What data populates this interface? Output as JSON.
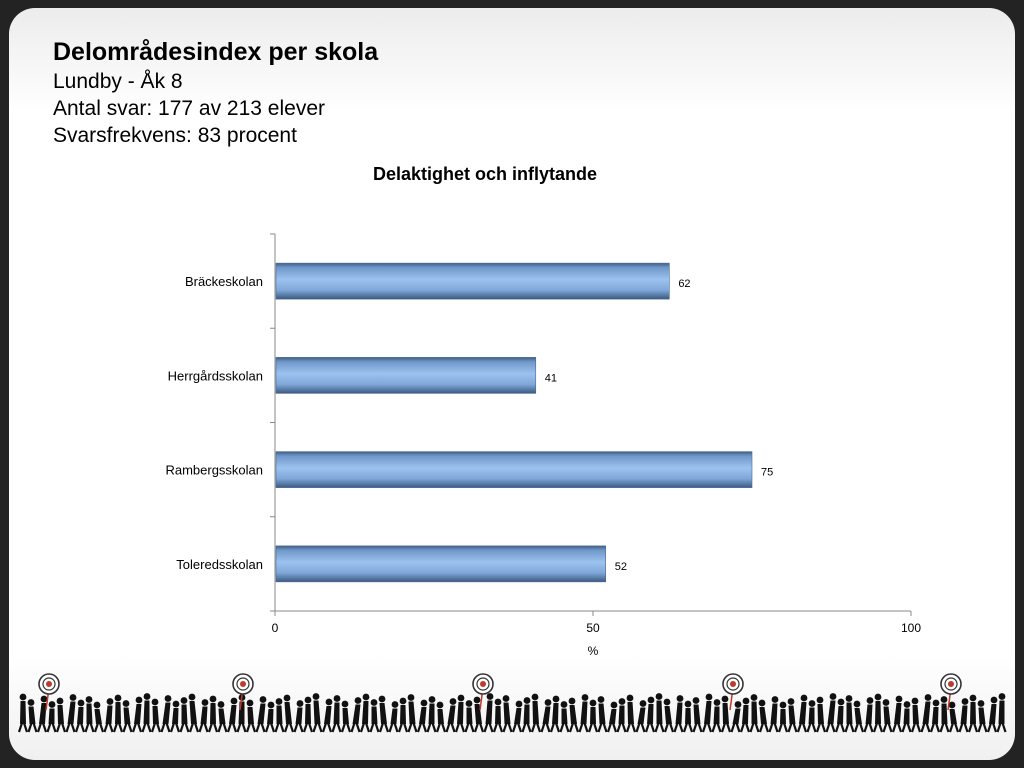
{
  "header": {
    "title": "Delområdesindex per skola",
    "line1": "Lundby - Åk 8",
    "line2": "Antal svar: 177 av 213 elever",
    "line3": "Svarsfrekvens: 83 procent"
  },
  "chart_data": {
    "type": "bar",
    "orientation": "horizontal",
    "title": "Delaktighet och inflytande",
    "categories": [
      "Bräckeskolan",
      "Herrgårdsskolan",
      "Rambergsskolan",
      "Toleredsskolan"
    ],
    "values": [
      62,
      41,
      75,
      52
    ],
    "xlabel": "%",
    "ylabel": "",
    "xlim": [
      0,
      100
    ],
    "xticks": [
      0,
      50,
      100
    ],
    "grid": false,
    "legend": "none",
    "bar_color": "#8db3e2"
  },
  "decoration": {
    "footer_image": "walking-crowd-silhouettes-with-targets",
    "target_color": "#c0392b"
  }
}
